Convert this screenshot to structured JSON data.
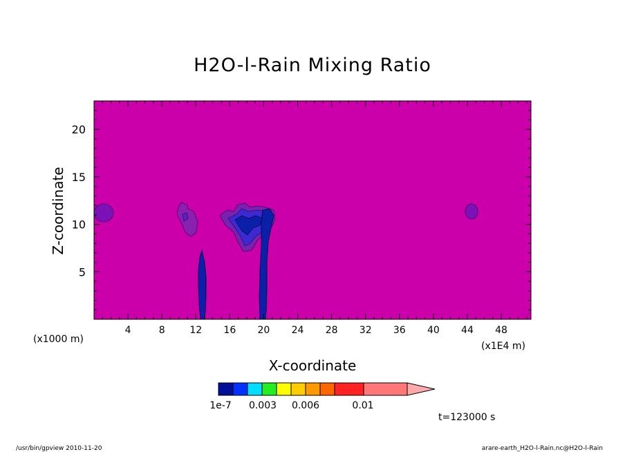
{
  "chart_data": {
    "type": "heatmap",
    "title": "H2O-l-Rain Mixing Ratio",
    "xlabel": "X-coordinate",
    "ylabel": "Z-coordinate",
    "x_unit": "(x1E4 m)",
    "z_unit": "(x1000 m)",
    "xlim": [
      0,
      51.5
    ],
    "ylim": [
      0,
      23
    ],
    "x_ticks": [
      4,
      8,
      12,
      16,
      20,
      24,
      28,
      32,
      36,
      40,
      44,
      48
    ],
    "y_ticks": [
      5,
      10,
      15,
      20
    ],
    "background_level_color": "#cc00aa",
    "colorbar": {
      "colors": [
        "#001099",
        "#0033ff",
        "#00ddff",
        "#22ee22",
        "#ffff00",
        "#ffcc00",
        "#ff9900",
        "#ff6600",
        "#ff2222",
        "#ff7777",
        "#ffaaaa"
      ],
      "labels": [
        "1e-7",
        "0.003",
        "0.006",
        "0.01"
      ],
      "extend": "max"
    },
    "features": [
      {
        "name": "cell-left-edge",
        "x": 1.2,
        "z": 11.1,
        "level": "low"
      },
      {
        "name": "cell-x11",
        "x": 11.0,
        "z": 10.8,
        "level": "low"
      },
      {
        "name": "cell-x18-20",
        "x": 19.0,
        "z": 10.5,
        "level": "moderate"
      },
      {
        "name": "column-x13",
        "x": 12.8,
        "z": 3.5,
        "level": "moderate"
      },
      {
        "name": "column-x20",
        "x": 20.0,
        "z": 5.0,
        "level": "moderate"
      },
      {
        "name": "cell-x44",
        "x": 44.2,
        "z": 11.2,
        "level": "low"
      }
    ],
    "time_label": "t=123000 s"
  },
  "footer": {
    "left": "/usr/bin/gpview  2010-11-20",
    "right": "arare-earth_H2O-l-Rain.nc@H2O-l-Rain"
  }
}
